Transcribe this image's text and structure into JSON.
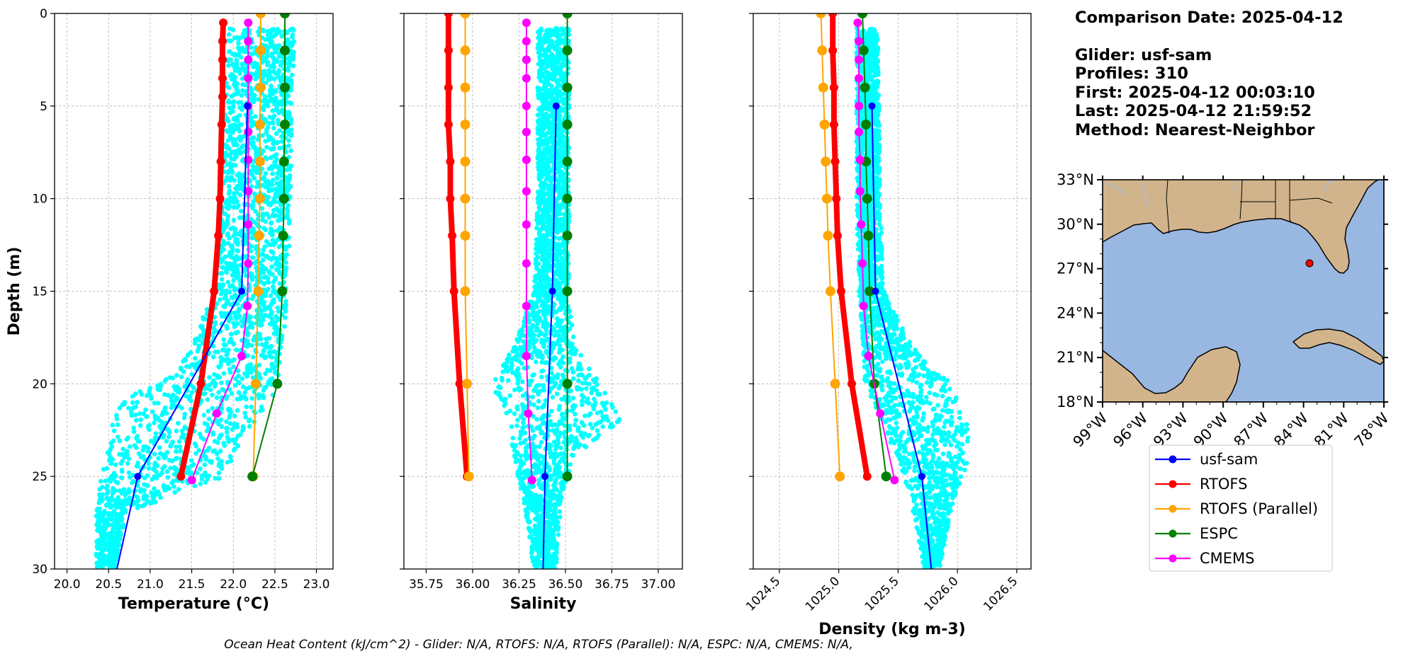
{
  "info": {
    "comparison_date": "Comparison Date: 2025-04-12",
    "glider": "Glider: usf-sam",
    "profiles": "Profiles: 310",
    "first": "First: 2025-04-12 00:03:10",
    "last": "Last: 2025-04-12 21:59:52",
    "method": "Method: Nearest-Neighbor"
  },
  "footer": "Ocean Heat Content (kJ/cm^2) - Glider: N/A,  RTOFS: N/A,  RTOFS (Parallel): N/A,  ESPC: N/A,  CMEMS: N/A,",
  "colors": {
    "glider_points": "#00ffff",
    "usf-sam": "#0000ff",
    "RTOFS": "#ff0000",
    "RTOFS (Parallel)": "#ffa500",
    "ESPC": "#008000",
    "CMEMS": "#ff00ff",
    "land": "#d2b48c",
    "ocean": "#98b8e2"
  },
  "chart_data": [
    {
      "type": "line",
      "xlabel": "Temperature (°C)",
      "ylabel": "Depth (m)",
      "xlim": [
        19.85,
        23.2
      ],
      "ylim": [
        30,
        0
      ],
      "xticks": [
        "20.0",
        "20.5",
        "21.0",
        "21.5",
        "22.0",
        "22.5",
        "23.0"
      ],
      "yticks": [
        "0",
        "5",
        "10",
        "15",
        "20",
        "25",
        "30"
      ],
      "grid": true,
      "glider_envelope": [
        [
          0.8,
          21.95,
          22.75
        ],
        [
          5,
          21.9,
          22.7
        ],
        [
          10,
          21.85,
          22.7
        ],
        [
          15,
          21.75,
          22.65
        ],
        [
          18,
          21.5,
          22.6
        ],
        [
          19.5,
          21.3,
          22.55
        ],
        [
          21,
          20.6,
          22.45
        ],
        [
          23,
          20.5,
          22.1
        ],
        [
          25,
          20.4,
          21.9
        ],
        [
          27,
          20.35,
          20.7
        ],
        [
          30,
          20.35,
          20.6
        ]
      ],
      "series": [
        {
          "name": "usf-sam",
          "depth": [
            5,
            15,
            25,
            30
          ],
          "values": [
            22.17,
            22.1,
            20.85,
            20.6
          ],
          "lw": 2,
          "ms": 5
        },
        {
          "name": "RTOFS",
          "depth": [
            0.5,
            1.5,
            2.5,
            3.5,
            4.5,
            6,
            8,
            10,
            12,
            15,
            20,
            25
          ],
          "values": [
            21.88,
            21.87,
            21.87,
            21.87,
            21.87,
            21.86,
            21.85,
            21.84,
            21.82,
            21.77,
            21.61,
            21.37
          ],
          "lw": 8,
          "ms": 6
        },
        {
          "name": "RTOFS (Parallel)",
          "depth": [
            0,
            2,
            4,
            6,
            8,
            10,
            12,
            15,
            20,
            25
          ],
          "values": [
            22.33,
            22.33,
            22.33,
            22.32,
            22.32,
            22.32,
            22.31,
            22.3,
            22.27,
            22.24
          ],
          "lw": 2,
          "ms": 7
        },
        {
          "name": "ESPC",
          "depth": [
            0,
            2,
            4,
            6,
            8,
            10,
            12,
            15,
            20,
            25
          ],
          "values": [
            22.62,
            22.62,
            22.62,
            22.62,
            22.61,
            22.61,
            22.6,
            22.59,
            22.53,
            22.23
          ],
          "lw": 2,
          "ms": 7
        },
        {
          "name": "CMEMS",
          "depth": [
            0.5,
            1.5,
            2.5,
            3.5,
            5,
            6.4,
            7.9,
            9.6,
            11.4,
            13.5,
            15.8,
            18.5,
            21.6,
            25.2
          ],
          "values": [
            22.18,
            22.18,
            22.18,
            22.18,
            22.18,
            22.18,
            22.18,
            22.18,
            22.18,
            22.18,
            22.17,
            22.1,
            21.8,
            21.5
          ],
          "lw": 2,
          "ms": 6
        }
      ]
    },
    {
      "type": "line",
      "xlabel": "Salinity",
      "ylim": [
        30,
        0
      ],
      "xlim": [
        35.63,
        37.13
      ],
      "xticks": [
        "35.75",
        "36.00",
        "36.25",
        "36.50",
        "36.75",
        "37.00"
      ],
      "grid": true,
      "glider_envelope": [
        [
          0.8,
          36.35,
          36.52
        ],
        [
          10,
          36.35,
          36.52
        ],
        [
          15,
          36.33,
          36.52
        ],
        [
          18,
          36.22,
          36.55
        ],
        [
          20,
          36.1,
          36.7
        ],
        [
          22,
          36.2,
          36.8
        ],
        [
          24,
          36.22,
          36.55
        ],
        [
          26,
          36.27,
          36.48
        ],
        [
          30,
          36.33,
          36.45
        ]
      ],
      "series": [
        {
          "name": "usf-sam",
          "depth": [
            5,
            15,
            25,
            30
          ],
          "values": [
            36.45,
            36.43,
            36.39,
            36.38
          ],
          "lw": 2,
          "ms": 5
        },
        {
          "name": "RTOFS",
          "depth": [
            0,
            2,
            4,
            6,
            8,
            10,
            12,
            15,
            20,
            25
          ],
          "values": [
            35.87,
            35.87,
            35.87,
            35.87,
            35.88,
            35.88,
            35.89,
            35.9,
            35.93,
            35.97
          ],
          "lw": 8,
          "ms": 6
        },
        {
          "name": "RTOFS (Parallel)",
          "depth": [
            0,
            2,
            4,
            6,
            8,
            10,
            12,
            15,
            20,
            25
          ],
          "values": [
            35.96,
            35.96,
            35.96,
            35.96,
            35.96,
            35.96,
            35.96,
            35.96,
            35.97,
            35.98
          ],
          "lw": 2,
          "ms": 7
        },
        {
          "name": "ESPC",
          "depth": [
            0,
            2,
            4,
            6,
            8,
            10,
            12,
            15,
            20,
            25
          ],
          "values": [
            36.51,
            36.51,
            36.51,
            36.51,
            36.51,
            36.51,
            36.51,
            36.51,
            36.51,
            36.51
          ],
          "lw": 2,
          "ms": 7
        },
        {
          "name": "CMEMS",
          "depth": [
            0.5,
            1.5,
            2.5,
            3.5,
            5,
            6.4,
            7.9,
            9.6,
            11.4,
            13.5,
            15.8,
            18.5,
            21.6,
            25.2
          ],
          "values": [
            36.29,
            36.29,
            36.29,
            36.29,
            36.29,
            36.29,
            36.29,
            36.29,
            36.29,
            36.29,
            36.29,
            36.29,
            36.3,
            36.32
          ],
          "lw": 2,
          "ms": 6
        }
      ]
    },
    {
      "type": "line",
      "xlabel": "Density (kg m-3)",
      "ylim": [
        30,
        0
      ],
      "xlim": [
        1024.28,
        1026.62
      ],
      "xticks": [
        "1024.5",
        "1025.0",
        "1025.5",
        "1026.0",
        "1026.5"
      ],
      "grid": true,
      "glider_envelope": [
        [
          0.8,
          1025.15,
          1025.33
        ],
        [
          10,
          1025.15,
          1025.35
        ],
        [
          15,
          1025.17,
          1025.38
        ],
        [
          18,
          1025.2,
          1025.62
        ],
        [
          20,
          1025.22,
          1025.95
        ],
        [
          22,
          1025.35,
          1026.08
        ],
        [
          24,
          1025.5,
          1026.1
        ],
        [
          26,
          1025.6,
          1025.98
        ],
        [
          30,
          1025.72,
          1025.85
        ]
      ],
      "series": [
        {
          "name": "usf-sam",
          "depth": [
            5,
            15,
            25,
            30
          ],
          "values": [
            1025.28,
            1025.31,
            1025.7,
            1025.78
          ],
          "lw": 2,
          "ms": 5
        },
        {
          "name": "RTOFS",
          "depth": [
            0,
            2,
            4,
            6,
            8,
            10,
            12,
            15,
            20,
            25
          ],
          "values": [
            1024.95,
            1024.95,
            1024.96,
            1024.96,
            1024.97,
            1024.98,
            1024.99,
            1025.02,
            1025.11,
            1025.24
          ],
          "lw": 8,
          "ms": 6
        },
        {
          "name": "RTOFS (Parallel)",
          "depth": [
            0,
            2,
            4,
            6,
            8,
            10,
            12,
            15,
            20,
            25
          ],
          "values": [
            1024.85,
            1024.86,
            1024.87,
            1024.88,
            1024.89,
            1024.9,
            1024.91,
            1024.93,
            1024.97,
            1025.01
          ],
          "lw": 2,
          "ms": 7
        },
        {
          "name": "ESPC",
          "depth": [
            0,
            2,
            4,
            6,
            8,
            10,
            12,
            15,
            20,
            25
          ],
          "values": [
            1025.2,
            1025.21,
            1025.22,
            1025.23,
            1025.23,
            1025.24,
            1025.25,
            1025.26,
            1025.3,
            1025.4
          ],
          "lw": 2,
          "ms": 7
        },
        {
          "name": "CMEMS",
          "depth": [
            0.5,
            1.5,
            2.5,
            3.5,
            5,
            6.4,
            7.9,
            9.6,
            11.4,
            13.5,
            15.8,
            18.5,
            21.6,
            25.2
          ],
          "values": [
            1025.16,
            1025.17,
            1025.17,
            1025.17,
            1025.17,
            1025.17,
            1025.18,
            1025.18,
            1025.19,
            1025.2,
            1025.21,
            1025.25,
            1025.35,
            1025.47
          ],
          "lw": 2,
          "ms": 6
        }
      ]
    },
    {
      "type": "map",
      "lon_range": [
        -99,
        -78
      ],
      "lat_range": [
        18,
        33
      ],
      "lon_ticks": [
        "99°W",
        "96°W",
        "93°W",
        "90°W",
        "87°W",
        "84°W",
        "81°W",
        "78°W"
      ],
      "lat_ticks": [
        "33°N",
        "30°N",
        "27°N",
        "24°N",
        "21°N",
        "18°N"
      ],
      "glider_position": {
        "lon": -83.7,
        "lat": 27.65
      }
    }
  ],
  "legend": [
    "usf-sam",
    "RTOFS",
    "RTOFS (Parallel)",
    "ESPC",
    "CMEMS"
  ]
}
